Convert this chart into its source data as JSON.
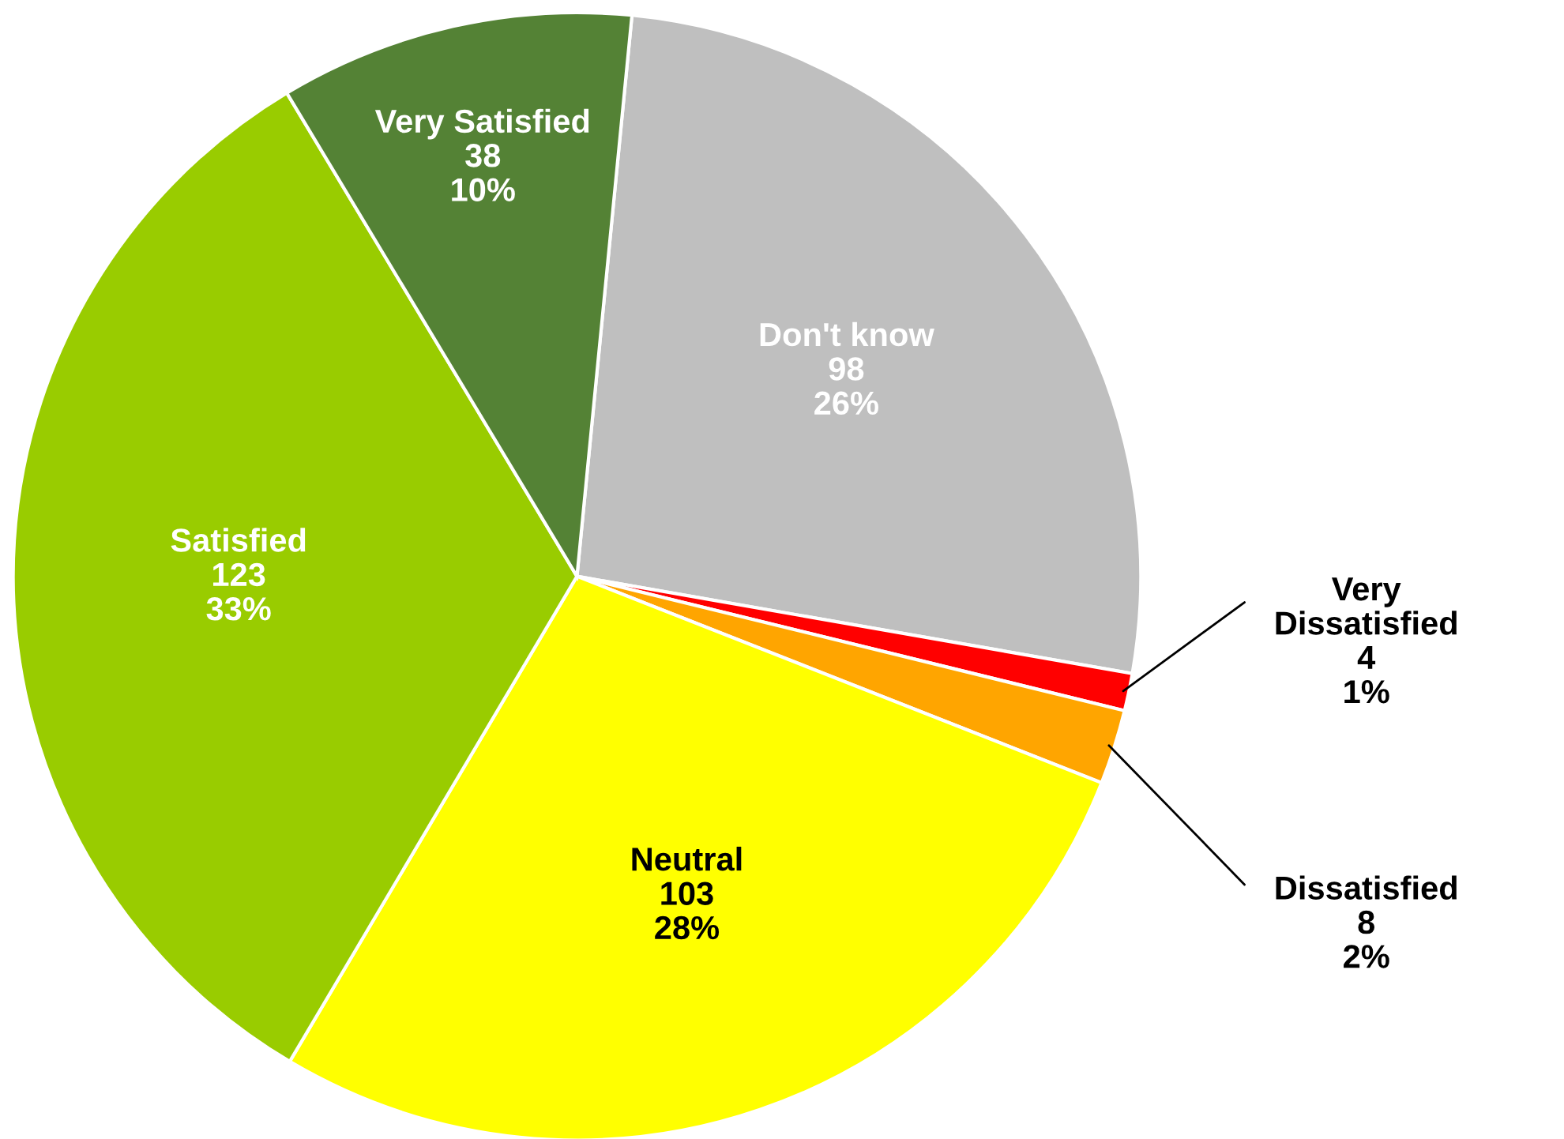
{
  "chart_data": {
    "type": "pie",
    "categories": [
      "Don't know",
      "Very Dissatisfied",
      "Dissatisfied",
      "Neutral",
      "Satisfied",
      "Very Satisfied"
    ],
    "values": [
      98,
      4,
      8,
      103,
      123,
      38
    ],
    "value_labels": [
      "98\n26%",
      "4\n1%",
      "8\n2%",
      "103\n28%",
      "123\n33%",
      "38\n10%"
    ],
    "colors": [
      "#bfbfbf",
      "#ff0000",
      "#ffa500",
      "#ffff00",
      "#99cc00",
      "#548235"
    ]
  }
}
